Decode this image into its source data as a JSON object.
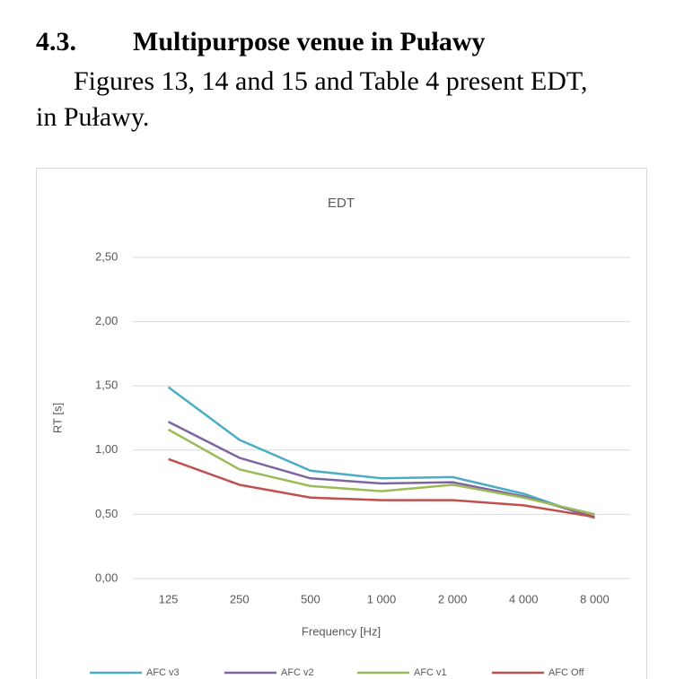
{
  "header": {
    "number": "4.3.",
    "title": "Multipurpose venue in Puławy"
  },
  "paragraph": {
    "lines": [
      "Figures 13, 14 and 15 and Table 4 present EDT,",
      "in Puławy."
    ]
  },
  "chart_data": {
    "type": "line",
    "title": "EDT",
    "x_label": "Frequency [Hz]",
    "y_label": "RT [s]",
    "categories": [
      "125",
      "250",
      "500",
      "1 000",
      "2 000",
      "4 000",
      "8 000"
    ],
    "series": [
      {
        "name": "AFC v3",
        "color": "#4bacc6",
        "values": [
          1.49,
          1.08,
          0.84,
          0.78,
          0.79,
          0.66,
          0.47
        ]
      },
      {
        "name": "AFC v2",
        "color": "#8064a2",
        "values": [
          1.22,
          0.94,
          0.78,
          0.74,
          0.75,
          0.64,
          0.48
        ]
      },
      {
        "name": "AFC v1",
        "color": "#9bbb59",
        "values": [
          1.16,
          0.85,
          0.72,
          0.68,
          0.73,
          0.63,
          0.5
        ]
      },
      {
        "name": "AFC Off",
        "color": "#c0504d",
        "values": [
          0.93,
          0.73,
          0.63,
          0.61,
          0.61,
          0.57,
          0.48
        ]
      }
    ],
    "ylim": [
      0,
      2.5
    ],
    "yticks": [
      {
        "value": 0,
        "label": "0,00"
      },
      {
        "value": 0.5,
        "label": "0,50"
      },
      {
        "value": 1,
        "label": "1,00"
      },
      {
        "value": 1.5,
        "label": "1,50"
      },
      {
        "value": 2,
        "label": "2,00"
      },
      {
        "value": 2.5,
        "label": "2,50"
      }
    ],
    "grid": true,
    "legend": "bottom"
  }
}
